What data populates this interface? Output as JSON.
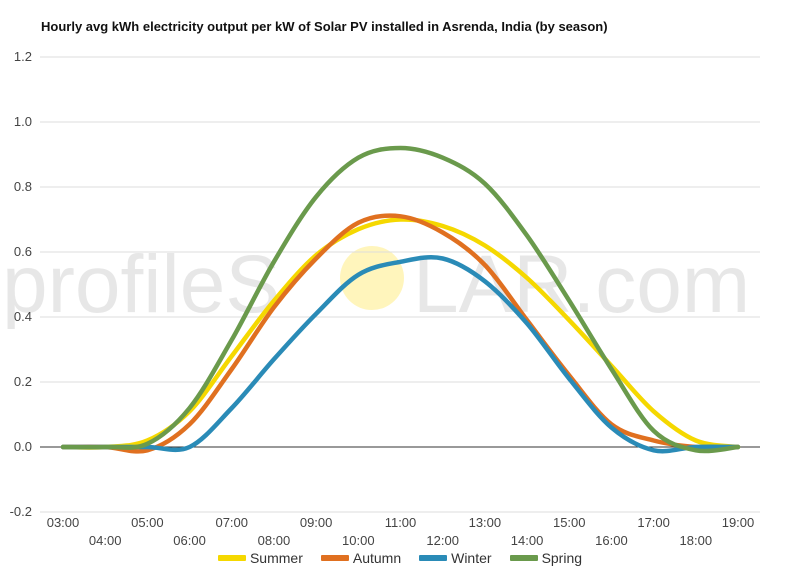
{
  "watermark": {
    "left": "profileS",
    "right": "LAR.com"
  },
  "chart_data": {
    "type": "line",
    "title": "Hourly avg kWh electricity output per kW of Solar PV installed in Asrenda, India (by season)",
    "xlabel": "",
    "ylabel": "",
    "ylim": [
      -0.2,
      1.2
    ],
    "yticks": [
      "-0.2",
      "0.0",
      "0.2",
      "0.4",
      "0.6",
      "0.8",
      "1.0",
      "1.2"
    ],
    "x": [
      "03:00",
      "04:00",
      "05:00",
      "06:00",
      "07:00",
      "08:00",
      "09:00",
      "10:00",
      "11:00",
      "12:00",
      "13:00",
      "14:00",
      "15:00",
      "16:00",
      "17:00",
      "18:00",
      "19:00"
    ],
    "grid": true,
    "legend_position": "bottom",
    "series": [
      {
        "name": "Summer",
        "color": "#F5D800",
        "values": [
          0.0,
          0.0,
          0.02,
          0.11,
          0.28,
          0.45,
          0.59,
          0.67,
          0.7,
          0.68,
          0.62,
          0.52,
          0.39,
          0.25,
          0.11,
          0.02,
          0.0
        ]
      },
      {
        "name": "Autumn",
        "color": "#E07020",
        "values": [
          0.0,
          0.0,
          -0.01,
          0.07,
          0.24,
          0.43,
          0.58,
          0.69,
          0.71,
          0.66,
          0.56,
          0.39,
          0.22,
          0.07,
          0.02,
          0.0,
          0.0
        ]
      },
      {
        "name": "Winter",
        "color": "#2A8BB7",
        "values": [
          0.0,
          0.0,
          0.0,
          0.0,
          0.12,
          0.27,
          0.41,
          0.53,
          0.57,
          0.58,
          0.51,
          0.38,
          0.21,
          0.06,
          -0.01,
          0.0,
          0.0
        ]
      },
      {
        "name": "Spring",
        "color": "#6A9A4C",
        "values": [
          0.0,
          0.0,
          0.01,
          0.12,
          0.33,
          0.57,
          0.77,
          0.89,
          0.92,
          0.89,
          0.81,
          0.65,
          0.45,
          0.24,
          0.05,
          -0.01,
          0.0
        ]
      }
    ]
  }
}
